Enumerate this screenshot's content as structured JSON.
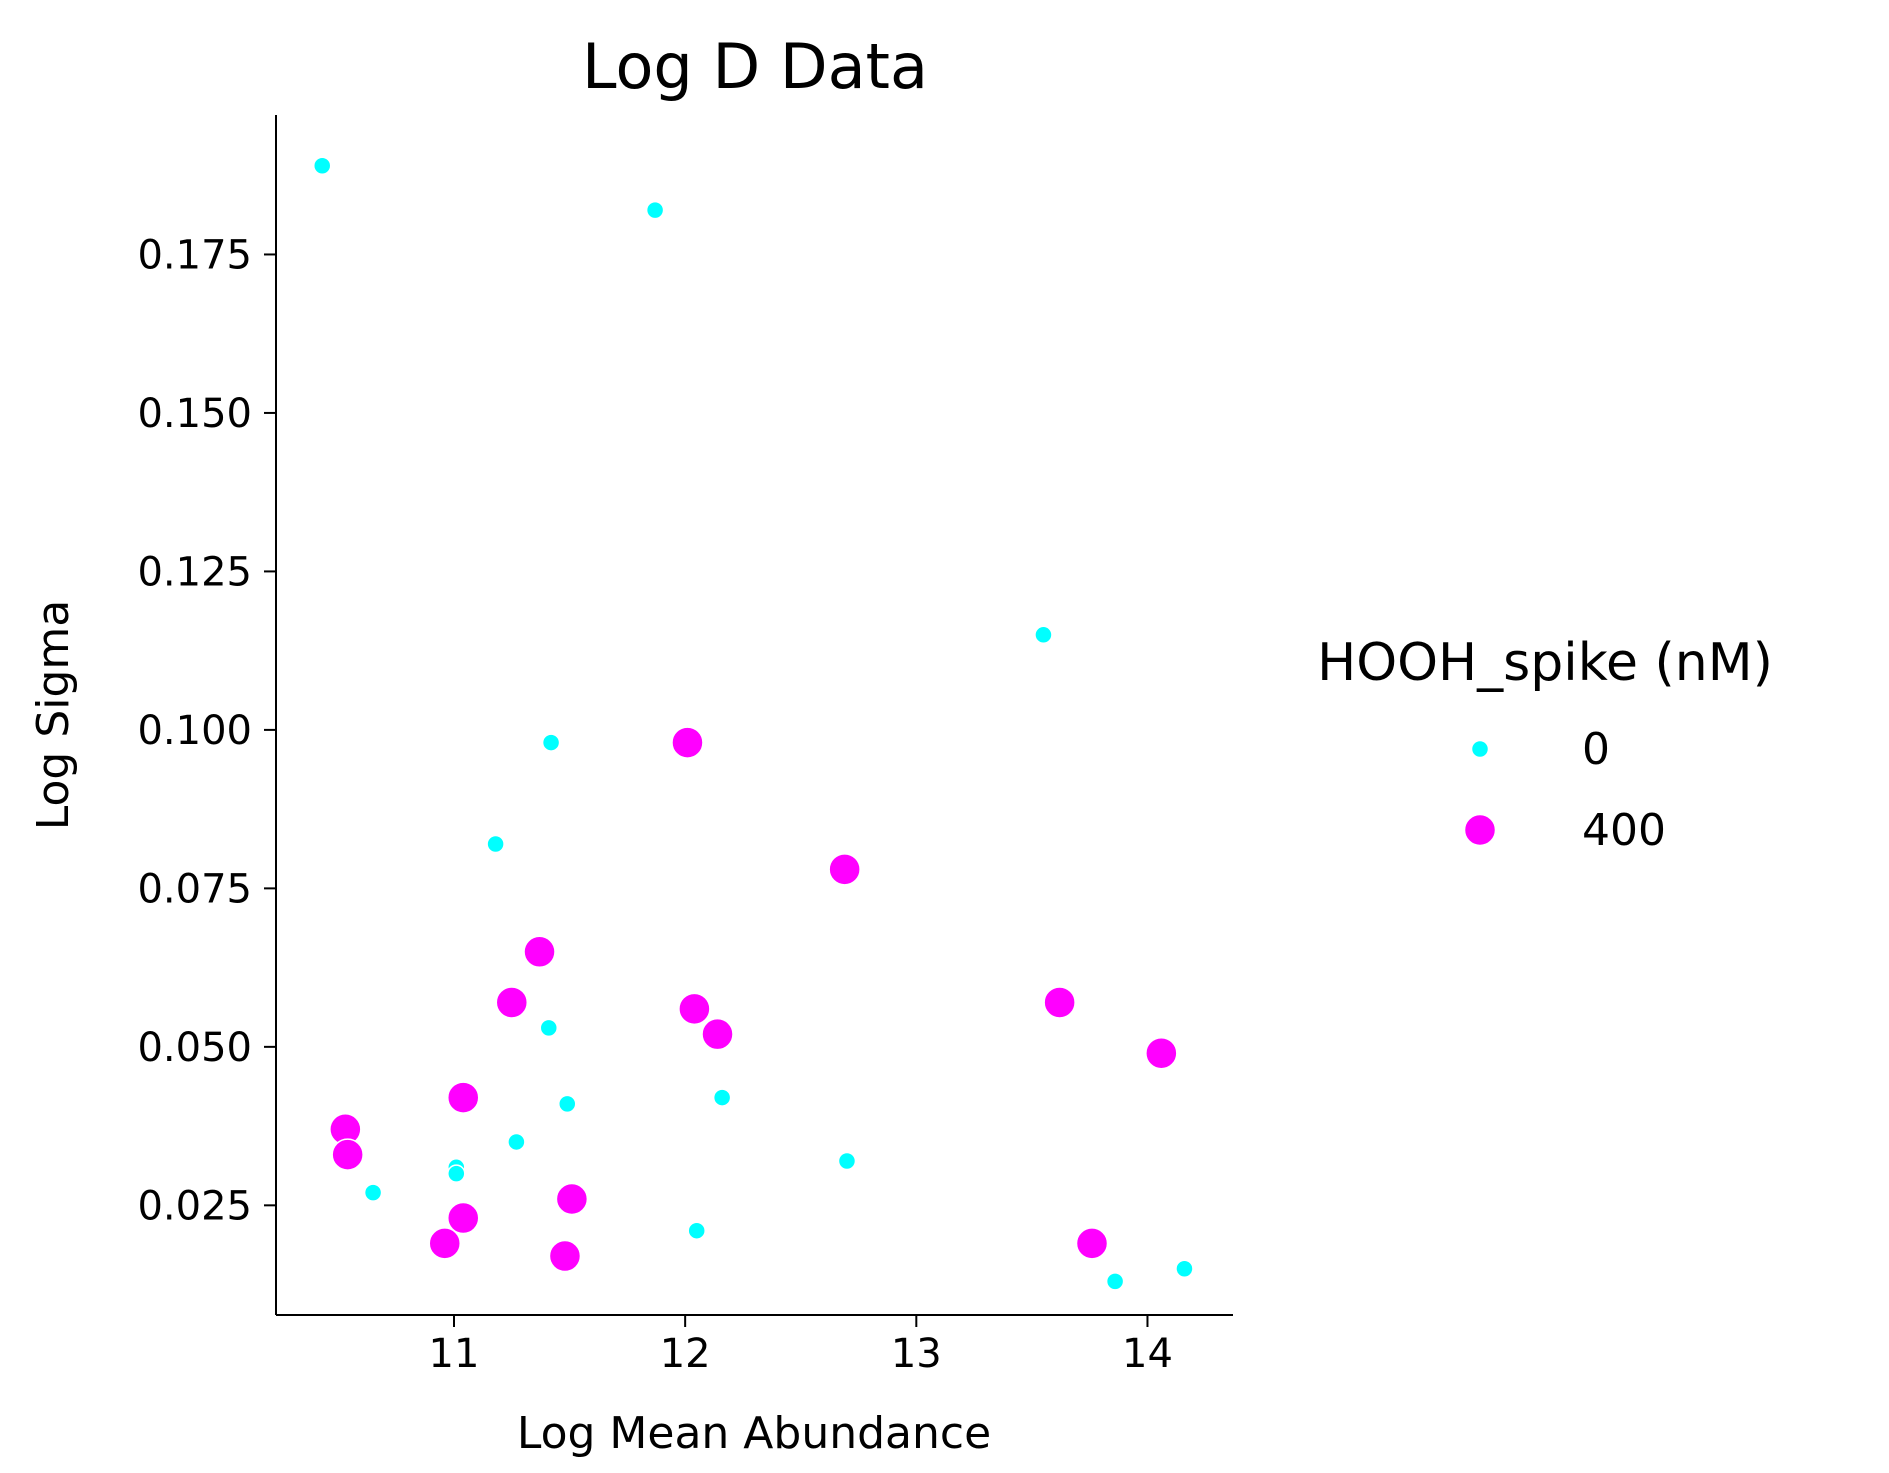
{
  "chart_data": {
    "type": "scatter",
    "title": "Log D Data",
    "xlabel": "Log Mean Abundance",
    "ylabel": "Log Sigma",
    "xlim": [
      10.23,
      14.37
    ],
    "ylim": [
      0.0077,
      0.197
    ],
    "xticks": [
      11,
      12,
      13,
      14
    ],
    "xtick_labels": [
      "11",
      "12",
      "13",
      "14"
    ],
    "yticks": [
      0.025,
      0.05,
      0.075,
      0.1,
      0.125,
      0.15,
      0.175
    ],
    "ytick_labels": [
      "0.025",
      "0.050",
      "0.075",
      "0.100",
      "0.125",
      "0.150",
      "0.175"
    ],
    "grid": false,
    "legend": {
      "title": "HOOH_spike (nM)",
      "placement": "right"
    },
    "series": [
      {
        "name": "0",
        "color": "#00ffff",
        "marker_size": "small",
        "points": [
          [
            10.43,
            0.189
          ],
          [
            11.87,
            0.182
          ],
          [
            13.55,
            0.115
          ],
          [
            11.42,
            0.098
          ],
          [
            11.18,
            0.082
          ],
          [
            11.41,
            0.053
          ],
          [
            12.16,
            0.042
          ],
          [
            11.49,
            0.041
          ],
          [
            11.27,
            0.035
          ],
          [
            11.01,
            0.031
          ],
          [
            11.01,
            0.03
          ],
          [
            12.7,
            0.032
          ],
          [
            10.65,
            0.027
          ],
          [
            12.05,
            0.021
          ],
          [
            14.16,
            0.015
          ],
          [
            13.86,
            0.013
          ]
        ]
      },
      {
        "name": "400",
        "color": "#ff00ff",
        "marker_size": "large",
        "points": [
          [
            12.01,
            0.098
          ],
          [
            12.69,
            0.078
          ],
          [
            11.37,
            0.065
          ],
          [
            11.25,
            0.057
          ],
          [
            12.04,
            0.056
          ],
          [
            12.14,
            0.052
          ],
          [
            13.62,
            0.057
          ],
          [
            14.06,
            0.049
          ],
          [
            11.04,
            0.042
          ],
          [
            10.53,
            0.037
          ],
          [
            10.54,
            0.033
          ],
          [
            11.51,
            0.026
          ],
          [
            11.04,
            0.023
          ],
          [
            10.96,
            0.019
          ],
          [
            11.48,
            0.017
          ],
          [
            13.76,
            0.019
          ]
        ]
      }
    ]
  }
}
